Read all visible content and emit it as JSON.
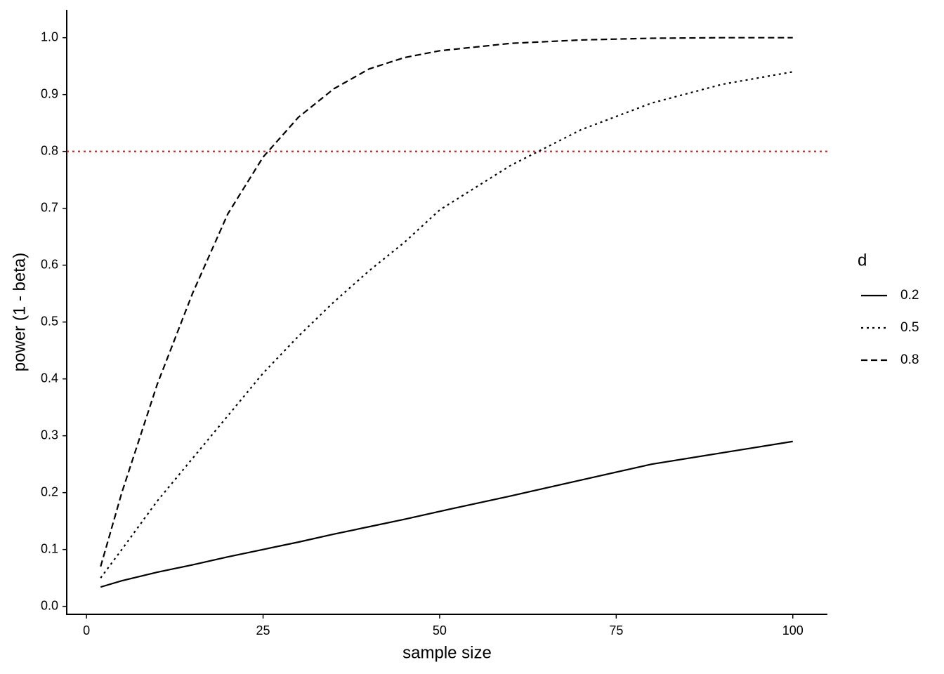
{
  "chart_data": {
    "type": "line",
    "x_label": "sample size",
    "y_label": "power (1 - beta)",
    "legend_title": "d",
    "legend_position": "right",
    "x": [
      2,
      5,
      10,
      15,
      20,
      25,
      30,
      35,
      40,
      45,
      50,
      60,
      70,
      80,
      90,
      100
    ],
    "series": [
      {
        "name": "0.2",
        "color": "#000000",
        "linestyle": "solid",
        "values": [
          0.034,
          0.045,
          0.06,
          0.073,
          0.087,
          0.1,
          0.113,
          0.127,
          0.14,
          0.153,
          0.167,
          0.194,
          0.222,
          0.25,
          0.27,
          0.29
        ]
      },
      {
        "name": "0.5",
        "color": "#000000",
        "linestyle": "dotted",
        "values": [
          0.05,
          0.1,
          0.185,
          0.26,
          0.335,
          0.41,
          0.475,
          0.535,
          0.59,
          0.64,
          0.697,
          0.775,
          0.838,
          0.885,
          0.918,
          0.94
        ]
      },
      {
        "name": "0.8",
        "color": "#000000",
        "linestyle": "dashed",
        "values": [
          0.07,
          0.2,
          0.39,
          0.55,
          0.69,
          0.79,
          0.86,
          0.91,
          0.945,
          0.965,
          0.977,
          0.99,
          0.996,
          0.999,
          1.0,
          1.0
        ]
      }
    ],
    "hline": {
      "value": 0.8,
      "color": "#ff0000",
      "linestyle": "dotted"
    },
    "xlim": [
      -2.8,
      104.9
    ],
    "ylim": [
      -0.014,
      1.049
    ],
    "xticks": [
      0,
      25,
      50,
      75,
      100
    ],
    "yticks": [
      {
        "value": 0,
        "label": "0.0"
      },
      0.1,
      0.2,
      0.3,
      0.4,
      0.5,
      0.6,
      0.7,
      0.8,
      0.9,
      {
        "value": 1,
        "label": "1.0"
      }
    ],
    "grid": false
  }
}
